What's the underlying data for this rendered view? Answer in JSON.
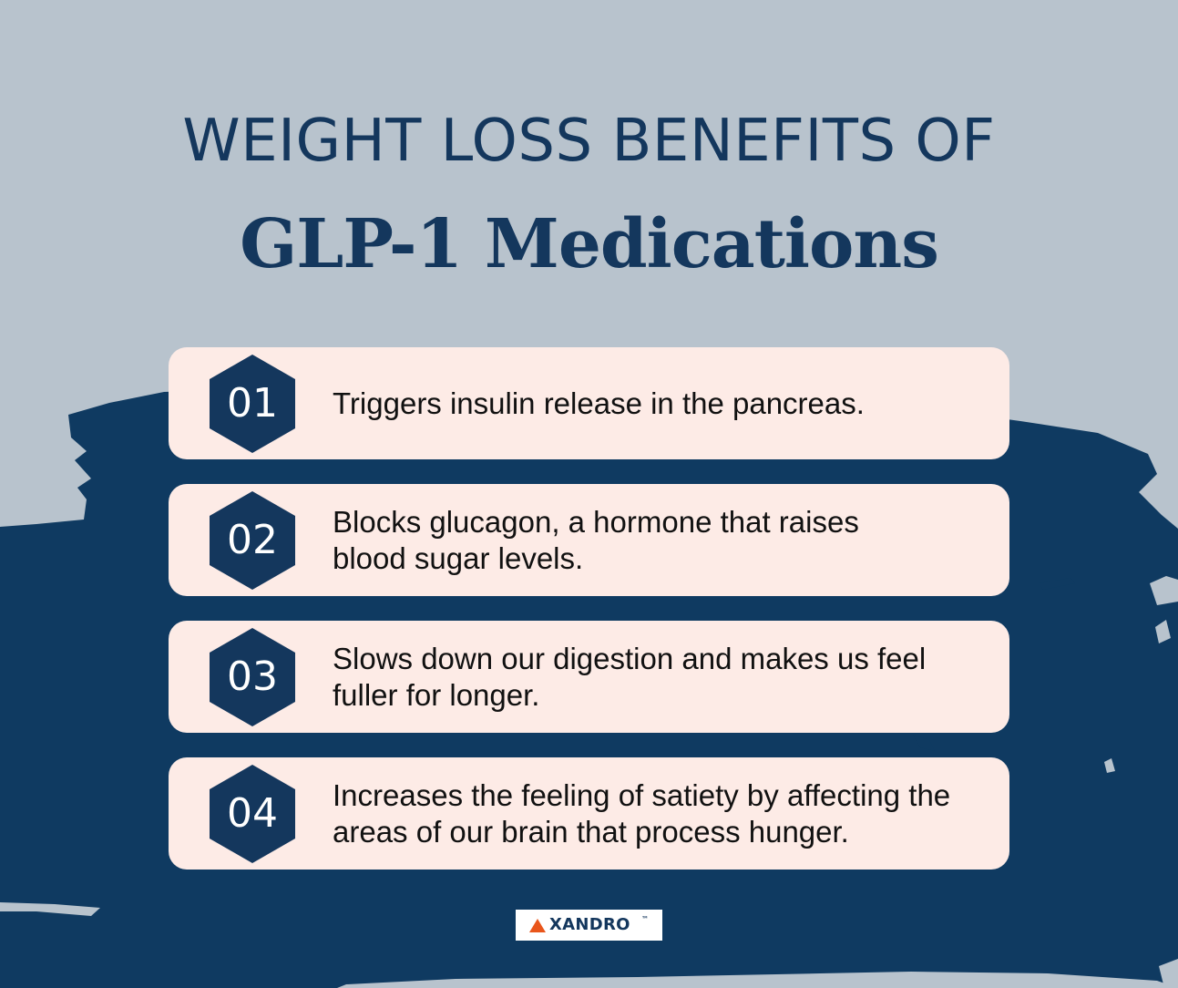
{
  "header": {
    "title_line_1": "WEIGHT LOSS BENEFITS OF",
    "title_line_2": "GLP-1 Medications"
  },
  "benefits": [
    {
      "number": "01",
      "text": "Triggers insulin release in the pancreas."
    },
    {
      "number": "02",
      "text": "Blocks glucagon, a hormone that raises blood sugar levels."
    },
    {
      "number": "03",
      "text": "Slows down our digestion and makes us feel fuller for longer."
    },
    {
      "number": "04",
      "text": "Increases the feeling of satiety by affecting the areas of our brain that process hunger."
    }
  ],
  "brand": {
    "name": "XANDRO",
    "trademark": "™",
    "accent_color": "#e9561b",
    "navy_color": "#14375d"
  },
  "colors": {
    "background": "#b8c3cd",
    "brush": "#0f3a61",
    "card": "#fdebe6"
  }
}
